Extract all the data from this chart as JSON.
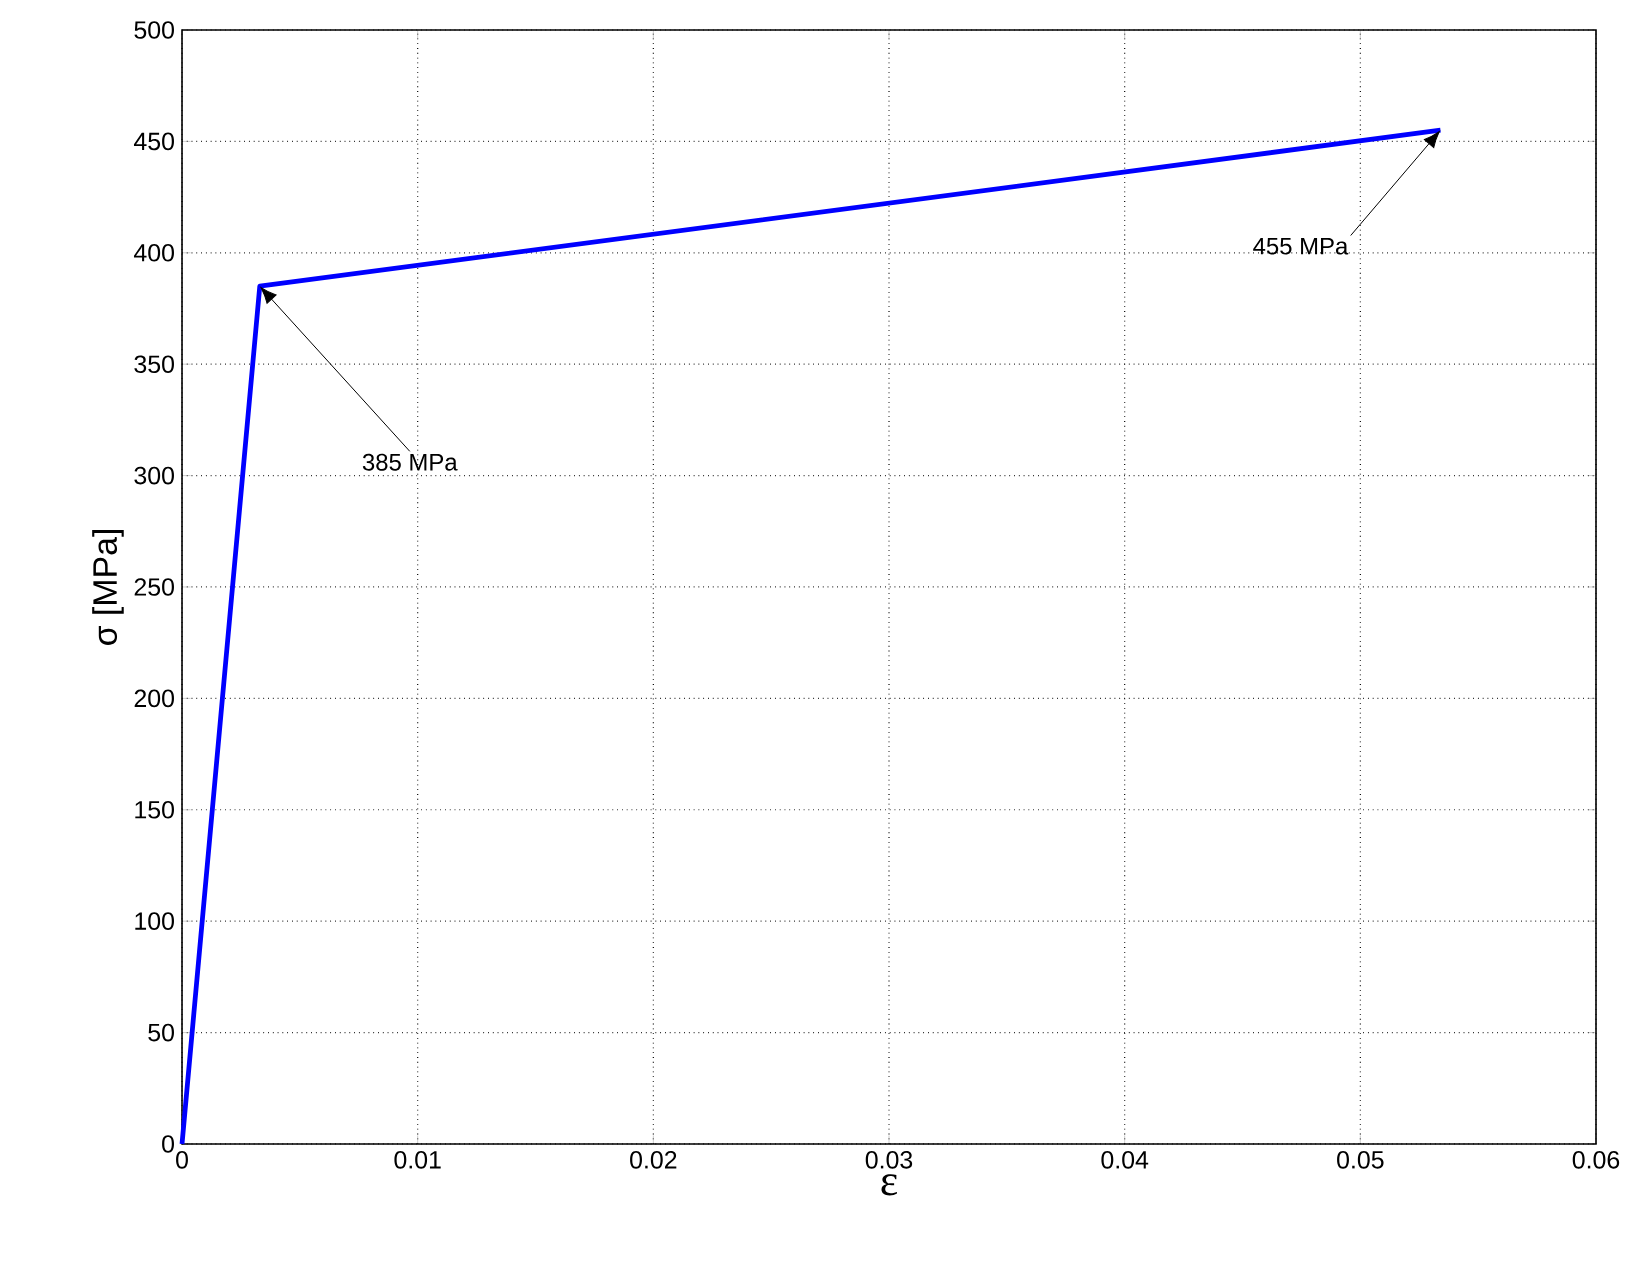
{
  "chart_data": {
    "type": "line",
    "xlabel": "ε",
    "ylabel": "σ [MPa]",
    "x": [
      0,
      0.0033,
      0.0534
    ],
    "series": [
      {
        "color": "#0000ff",
        "values": [
          0,
          385,
          455
        ]
      }
    ],
    "xlim": [
      0,
      0.06
    ],
    "ylim": [
      0,
      500
    ],
    "xticks": [
      0,
      0.01,
      0.02,
      0.03,
      0.04,
      0.05,
      0.06
    ],
    "yticks": [
      0,
      50,
      100,
      150,
      200,
      250,
      300,
      350,
      400,
      450,
      500
    ],
    "grid": true,
    "annotations": [
      {
        "text": "385 MPa",
        "x": 0.0033,
        "y": 385
      },
      {
        "text": "455 MPa",
        "x": 0.0534,
        "y": 455
      }
    ]
  }
}
